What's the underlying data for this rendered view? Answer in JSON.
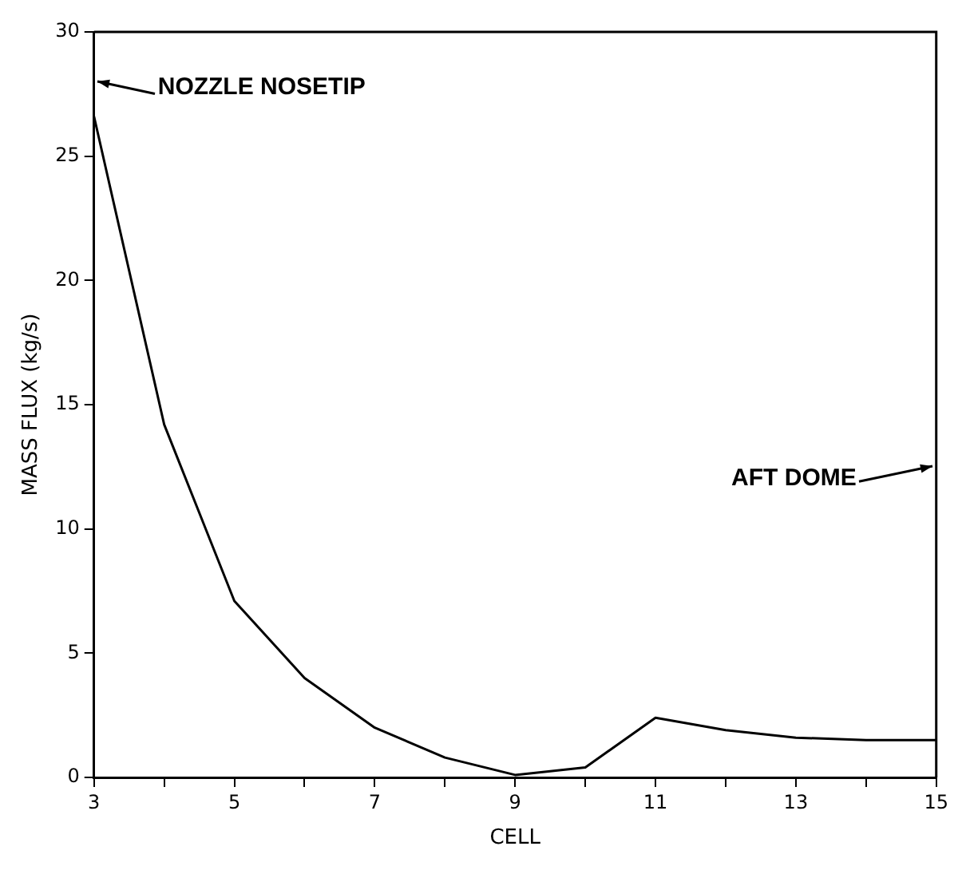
{
  "chart_data": {
    "type": "line",
    "xlabel": "CELL",
    "ylabel": "MASS FLUX (kg/s)",
    "x": [
      3,
      4,
      5,
      6,
      7,
      8,
      9,
      10,
      11,
      12,
      13,
      14,
      15
    ],
    "series": [
      {
        "color": "#000000",
        "values": [
          26.6,
          14.2,
          7.1,
          4.0,
          2.0,
          0.8,
          0.1,
          0.4,
          2.4,
          1.9,
          1.6,
          1.5,
          1.5
        ]
      }
    ],
    "xlim": [
      3,
      15
    ],
    "xticks": [
      3,
      {
        "value": 4,
        "label": null
      },
      5,
      {
        "value": 6,
        "label": null
      },
      7,
      {
        "value": 8,
        "label": null
      },
      9,
      {
        "value": 10,
        "label": null
      },
      11,
      {
        "value": 12,
        "label": null
      },
      13,
      {
        "value": 14,
        "label": null
      },
      15
    ],
    "ylim": [
      0,
      30
    ],
    "yticks": [
      0,
      5,
      10,
      15,
      20,
      25,
      30
    ],
    "annotations": [
      "NOZZLE NOSETIP",
      "AFT DOME"
    ],
    "grid": false,
    "legend": false,
    "marker": "none",
    "line_style": "solid"
  }
}
